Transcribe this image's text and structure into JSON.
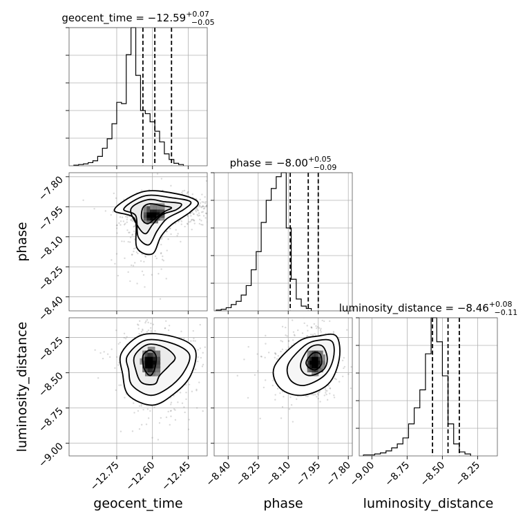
{
  "chart_data": {
    "type": "corner",
    "grid": true,
    "parameters": [
      {
        "name": "geocent_time",
        "title_prefix": "geocent_time = ",
        "median": "−12.59",
        "plus": "+0.07",
        "minus": "−0.05",
        "median_value": -12.59,
        "q_low": -12.64,
        "q_high": -12.52,
        "range": [
          -12.95,
          -12.37
        ],
        "ticks": [
          -12.75,
          -12.6,
          -12.45
        ],
        "tick_labels": [
          "−12.75",
          "−12.60",
          "−12.45"
        ],
        "hist_start": -12.93,
        "hist_step": 0.02,
        "hist_counts": [
          1,
          2,
          3,
          5,
          8,
          15,
          28,
          43,
          67,
          101,
          99,
          177,
          220,
          144,
          88,
          83,
          70,
          55,
          38,
          19,
          10,
          4,
          2
        ]
      },
      {
        "name": "phase",
        "title_prefix": "phase = ",
        "median": "−8.00",
        "plus": "+0.05",
        "minus": "−0.09",
        "median_value": -8.0,
        "q_low": -8.09,
        "q_high": -7.95,
        "range": [
          -8.47,
          -7.78
        ],
        "ticks": [
          -8.4,
          -8.25,
          -8.1,
          -7.95,
          -7.8
        ],
        "tick_labels": [
          "−8.40",
          "−8.25",
          "−8.10",
          "−7.95",
          "−7.80"
        ],
        "hist_start": -8.46,
        "hist_step": 0.025,
        "hist_counts": [
          1,
          2,
          4,
          8,
          12,
          20,
          32,
          52,
          75,
          112,
          140,
          155,
          170,
          175,
          105,
          40,
          15,
          6,
          3
        ]
      },
      {
        "name": "luminosity_distance",
        "title_prefix": "luminosity_distance = ",
        "median": "−8.46",
        "plus": "+0.08",
        "minus": "−0.11",
        "median_value": -8.46,
        "q_low": -8.57,
        "q_high": -8.38,
        "range": [
          -9.09,
          -8.11
        ],
        "ticks": [
          -9.0,
          -8.75,
          -8.5,
          -8.25
        ],
        "tick_labels": [
          "−9.00",
          "−8.75",
          "−8.50",
          "−8.25"
        ],
        "hist_start": -9.06,
        "hist_step": 0.04,
        "hist_counts": [
          1,
          1,
          2,
          3,
          5,
          8,
          12,
          18,
          32,
          48,
          66,
          102,
          138,
          114,
          80,
          32,
          12,
          4,
          2
        ]
      }
    ],
    "axis_labels": {
      "x": [
        "geocent_time",
        "phase",
        "luminosity_distance"
      ],
      "y": [
        "phase",
        "luminosity_distance"
      ]
    },
    "density_2d": [
      {
        "x": "geocent_time",
        "y": "phase",
        "center": [
          -12.6,
          -7.99
        ],
        "blobs": [
          {
            "cx": -12.6,
            "cy": -7.99,
            "sx": 0.025,
            "sy": 0.025,
            "w": 1.0
          },
          {
            "cx": -12.54,
            "cy": -7.97,
            "sx": 0.05,
            "sy": 0.02,
            "w": 0.6
          },
          {
            "cx": -12.47,
            "cy": -7.95,
            "sx": 0.04,
            "sy": 0.02,
            "w": 0.35
          },
          {
            "cx": -12.64,
            "cy": -8.1,
            "sx": 0.025,
            "sy": 0.05,
            "w": 0.3
          }
        ],
        "contours": [
          [
            [
              -12.64,
              -7.955
            ],
            [
              -12.61,
              -7.935
            ],
            [
              -12.56,
              -7.945
            ],
            [
              -12.52,
              -7.955
            ],
            [
              -12.55,
              -7.975
            ],
            [
              -12.59,
              -8.01
            ],
            [
              -12.62,
              -8.035
            ],
            [
              -12.645,
              -8.01
            ]
          ],
          [
            [
              -12.69,
              -7.96
            ],
            [
              -12.62,
              -7.915
            ],
            [
              -12.55,
              -7.925
            ],
            [
              -12.48,
              -7.935
            ],
            [
              -12.5,
              -7.965
            ],
            [
              -12.56,
              -7.99
            ],
            [
              -12.6,
              -8.04
            ],
            [
              -12.63,
              -8.085
            ],
            [
              -12.665,
              -8.04
            ]
          ],
          [
            [
              -12.72,
              -7.96
            ],
            [
              -12.63,
              -7.895
            ],
            [
              -12.52,
              -7.905
            ],
            [
              -12.44,
              -7.925
            ],
            [
              -12.47,
              -7.965
            ],
            [
              -12.54,
              -8.01
            ],
            [
              -12.58,
              -8.07
            ],
            [
              -12.615,
              -8.14
            ],
            [
              -12.66,
              -8.1
            ],
            [
              -12.67,
              -7.995
            ]
          ],
          [
            [
              -12.76,
              -7.965
            ],
            [
              -12.64,
              -7.875
            ],
            [
              -12.5,
              -7.885
            ],
            [
              -12.41,
              -7.925
            ],
            [
              -12.44,
              -7.975
            ],
            [
              -12.52,
              -8.04
            ],
            [
              -12.565,
              -8.1
            ],
            [
              -12.6,
              -8.185
            ],
            [
              -12.665,
              -8.155
            ],
            [
              -12.675,
              -8.01
            ]
          ]
        ]
      },
      {
        "x": "geocent_time",
        "y": "luminosity_distance",
        "center": [
          -12.61,
          -8.42
        ],
        "blobs": [
          {
            "cx": -12.61,
            "cy": -8.42,
            "sx": 0.02,
            "sy": 0.05,
            "w": 1.0
          },
          {
            "cx": -12.56,
            "cy": -8.4,
            "sx": 0.05,
            "sy": 0.06,
            "w": 0.4
          },
          {
            "cx": -12.59,
            "cy": -8.55,
            "sx": 0.04,
            "sy": 0.08,
            "w": 0.3
          }
        ],
        "contours": [
          [
            [
              -12.64,
              -8.38
            ],
            [
              -12.61,
              -8.34
            ],
            [
              -12.585,
              -8.38
            ],
            [
              -12.59,
              -8.47
            ],
            [
              -12.61,
              -8.52
            ],
            [
              -12.635,
              -8.47
            ]
          ],
          [
            [
              -12.675,
              -8.38
            ],
            [
              -12.62,
              -8.3
            ],
            [
              -12.55,
              -8.32
            ],
            [
              -12.505,
              -8.39
            ],
            [
              -12.53,
              -8.45
            ],
            [
              -12.57,
              -8.52
            ],
            [
              -12.59,
              -8.58
            ],
            [
              -12.645,
              -8.57
            ],
            [
              -12.67,
              -8.48
            ]
          ],
          [
            [
              -12.705,
              -8.38
            ],
            [
              -12.63,
              -8.27
            ],
            [
              -12.52,
              -8.29
            ],
            [
              -12.445,
              -8.37
            ],
            [
              -12.47,
              -8.5
            ],
            [
              -12.535,
              -8.61
            ],
            [
              -12.61,
              -8.66
            ],
            [
              -12.685,
              -8.59
            ],
            [
              -12.7,
              -8.48
            ]
          ],
          [
            [
              -12.73,
              -8.36
            ],
            [
              -12.64,
              -8.23
            ],
            [
              -12.5,
              -8.25
            ],
            [
              -12.42,
              -8.34
            ],
            [
              -12.44,
              -8.52
            ],
            [
              -12.51,
              -8.65
            ],
            [
              -12.6,
              -8.73
            ],
            [
              -12.7,
              -8.66
            ],
            [
              -12.725,
              -8.51
            ]
          ]
        ]
      },
      {
        "x": "phase",
        "y": "luminosity_distance",
        "center": [
          -7.96,
          -8.42
        ],
        "blobs": [
          {
            "cx": -7.955,
            "cy": -8.42,
            "sx": 0.02,
            "sy": 0.05,
            "w": 1.0
          },
          {
            "cx": -7.99,
            "cy": -8.42,
            "sx": 0.035,
            "sy": 0.05,
            "w": 0.55
          },
          {
            "cx": -8.06,
            "cy": -8.5,
            "sx": 0.05,
            "sy": 0.06,
            "w": 0.3
          }
        ],
        "contours": [
          [
            [
              -8.01,
              -8.42
            ],
            [
              -7.975,
              -8.36
            ],
            [
              -7.94,
              -8.37
            ],
            [
              -7.935,
              -8.44
            ],
            [
              -7.965,
              -8.48
            ],
            [
              -8.0,
              -8.46
            ]
          ],
          [
            [
              -8.035,
              -8.42
            ],
            [
              -7.99,
              -8.32
            ],
            [
              -7.93,
              -8.31
            ],
            [
              -7.905,
              -8.4
            ],
            [
              -7.925,
              -8.48
            ],
            [
              -7.99,
              -8.52
            ],
            [
              -8.03,
              -8.49
            ]
          ],
          [
            [
              -8.1,
              -8.44
            ],
            [
              -8.02,
              -8.31
            ],
            [
              -7.95,
              -8.27
            ],
            [
              -7.88,
              -8.28
            ],
            [
              -7.875,
              -8.4
            ],
            [
              -7.92,
              -8.52
            ],
            [
              -8.02,
              -8.59
            ],
            [
              -8.09,
              -8.55
            ]
          ],
          [
            [
              -8.17,
              -8.46
            ],
            [
              -8.05,
              -8.28
            ],
            [
              -7.95,
              -8.24
            ],
            [
              -7.86,
              -8.24
            ],
            [
              -7.845,
              -8.4
            ],
            [
              -7.9,
              -8.58
            ],
            [
              -8.03,
              -8.66
            ],
            [
              -8.14,
              -8.61
            ]
          ]
        ]
      }
    ]
  }
}
